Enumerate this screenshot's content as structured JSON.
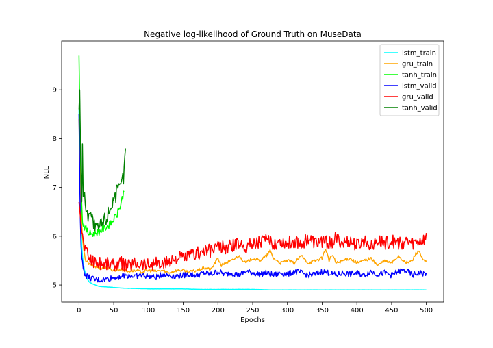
{
  "chart_data": {
    "type": "line",
    "title": "Negative log-likelihood of Ground Truth on MuseData",
    "xlabel": "Epochs",
    "ylabel": "NLL",
    "xlim": [
      -25,
      525
    ],
    "ylim": [
      4.65,
      10.0
    ],
    "xticks": [
      0,
      50,
      100,
      150,
      200,
      250,
      300,
      350,
      400,
      450,
      500
    ],
    "yticks": [
      5,
      6,
      7,
      8,
      9
    ],
    "grid": false,
    "legend_position": "top-right",
    "series": [
      {
        "name": "lstm_train",
        "color": "#00ffff",
        "x": [
          0,
          1,
          2,
          3,
          4,
          5,
          6,
          8,
          10,
          12,
          15,
          20,
          25,
          30,
          40,
          50,
          60,
          70,
          80,
          100,
          125,
          150,
          175,
          200,
          225,
          250,
          275,
          300,
          325,
          350,
          375,
          400,
          425,
          450,
          475,
          500
        ],
        "y": [
          8.6,
          7.6,
          6.8,
          6.2,
          5.8,
          5.6,
          5.45,
          5.3,
          5.2,
          5.12,
          5.06,
          5.02,
          4.99,
          4.97,
          4.96,
          4.95,
          4.94,
          4.93,
          4.93,
          4.92,
          4.92,
          4.92,
          4.91,
          4.91,
          4.91,
          4.91,
          4.9,
          4.9,
          4.9,
          4.9,
          4.9,
          4.9,
          4.9,
          4.9,
          4.9,
          4.9
        ]
      },
      {
        "name": "gru_train",
        "color": "#ffa500",
        "x": [
          0,
          2,
          4,
          6,
          8,
          10,
          15,
          20,
          25,
          30,
          40,
          50,
          60,
          70,
          80,
          90,
          100,
          110,
          120,
          130,
          140,
          150,
          160,
          170,
          180,
          190,
          200,
          205,
          210,
          220,
          230,
          240,
          250,
          260,
          270,
          275,
          280,
          290,
          300,
          310,
          320,
          330,
          340,
          350,
          355,
          360,
          365,
          370,
          380,
          390,
          400,
          410,
          420,
          430,
          440,
          450,
          460,
          470,
          480,
          485,
          490,
          495,
          500
        ],
        "y": [
          8.4,
          7.0,
          6.2,
          5.8,
          5.6,
          5.5,
          5.42,
          5.4,
          5.37,
          5.35,
          5.35,
          5.3,
          5.32,
          5.28,
          5.3,
          5.27,
          5.3,
          5.28,
          5.3,
          5.25,
          5.3,
          5.3,
          5.27,
          5.3,
          5.35,
          5.32,
          5.55,
          5.4,
          5.45,
          5.5,
          5.6,
          5.45,
          5.55,
          5.5,
          5.6,
          5.7,
          5.55,
          5.45,
          5.5,
          5.45,
          5.6,
          5.45,
          5.5,
          5.55,
          5.75,
          5.5,
          5.62,
          5.45,
          5.5,
          5.55,
          5.45,
          5.5,
          5.55,
          5.4,
          5.5,
          5.45,
          5.6,
          5.45,
          5.5,
          5.65,
          5.7,
          5.5,
          5.48
        ]
      },
      {
        "name": "tanh_train",
        "color": "#00ff00",
        "x": [
          0,
          1,
          2,
          3,
          4,
          5,
          6,
          8,
          10,
          12,
          15,
          20,
          25,
          30,
          35,
          40,
          45,
          50,
          55,
          60,
          65
        ],
        "y": [
          9.7,
          8.7,
          7.8,
          7.1,
          6.6,
          6.35,
          6.25,
          6.2,
          6.15,
          6.1,
          6.05,
          6.05,
          6.08,
          6.1,
          6.15,
          6.2,
          6.25,
          6.35,
          6.45,
          6.65,
          6.95
        ]
      },
      {
        "name": "lstm_valid",
        "color": "#0000ff",
        "x": [
          0,
          1,
          2,
          3,
          4,
          5,
          6,
          8,
          10,
          12,
          15,
          20,
          25,
          30,
          40,
          50,
          60,
          70,
          80,
          90,
          100,
          110,
          120,
          130,
          140,
          150,
          160,
          170,
          180,
          190,
          200,
          210,
          220,
          230,
          240,
          250,
          260,
          270,
          280,
          290,
          300,
          310,
          320,
          330,
          340,
          350,
          360,
          370,
          380,
          390,
          400,
          410,
          420,
          430,
          440,
          450,
          460,
          470,
          480,
          490,
          500
        ],
        "y": [
          8.5,
          7.2,
          6.3,
          5.8,
          5.55,
          5.45,
          5.35,
          5.25,
          5.2,
          5.18,
          5.15,
          5.12,
          5.1,
          5.1,
          5.12,
          5.15,
          5.18,
          5.2,
          5.18,
          5.2,
          5.18,
          5.15,
          5.22,
          5.2,
          5.18,
          5.2,
          5.22,
          5.2,
          5.25,
          5.22,
          5.28,
          5.22,
          5.25,
          5.2,
          5.28,
          5.25,
          5.22,
          5.25,
          5.2,
          5.25,
          5.22,
          5.28,
          5.25,
          5.2,
          5.22,
          5.28,
          5.25,
          5.2,
          5.25,
          5.22,
          5.25,
          5.2,
          5.28,
          5.22,
          5.25,
          5.2,
          5.28,
          5.3,
          5.2,
          5.25,
          5.22
        ]
      },
      {
        "name": "gru_valid",
        "color": "#ff0000",
        "x": [
          0,
          2,
          4,
          6,
          8,
          10,
          15,
          20,
          25,
          30,
          40,
          50,
          60,
          70,
          80,
          90,
          100,
          110,
          120,
          130,
          140,
          150,
          160,
          170,
          180,
          190,
          200,
          210,
          220,
          230,
          240,
          250,
          260,
          270,
          280,
          290,
          300,
          310,
          320,
          330,
          340,
          350,
          360,
          370,
          380,
          390,
          400,
          410,
          420,
          430,
          440,
          450,
          460,
          470,
          480,
          490,
          500
        ],
        "y": [
          6.7,
          6.4,
          6.1,
          5.9,
          5.8,
          5.7,
          5.55,
          5.5,
          5.45,
          5.45,
          5.45,
          5.42,
          5.45,
          5.4,
          5.45,
          5.45,
          5.42,
          5.45,
          5.4,
          5.5,
          5.55,
          5.55,
          5.6,
          5.65,
          5.7,
          5.7,
          5.8,
          5.75,
          5.8,
          5.85,
          5.8,
          5.85,
          5.9,
          5.9,
          5.85,
          5.9,
          5.85,
          5.9,
          5.85,
          5.95,
          5.85,
          5.9,
          5.85,
          5.95,
          5.85,
          5.9,
          5.8,
          5.9,
          5.85,
          5.9,
          5.85,
          5.9,
          5.85,
          5.9,
          5.85,
          5.9,
          5.95
        ]
      },
      {
        "name": "tanh_valid",
        "color": "#008000",
        "x": [
          0,
          1,
          2,
          3,
          4,
          5,
          6,
          8,
          10,
          12,
          15,
          20,
          25,
          30,
          35,
          40,
          45,
          50,
          55,
          60,
          65,
          67
        ],
        "y": [
          8.6,
          9.0,
          8.0,
          7.2,
          6.8,
          7.9,
          6.7,
          7.0,
          6.5,
          6.4,
          6.6,
          6.3,
          6.1,
          6.2,
          6.3,
          6.4,
          6.6,
          6.8,
          6.9,
          7.0,
          7.3,
          7.9
        ]
      }
    ]
  }
}
